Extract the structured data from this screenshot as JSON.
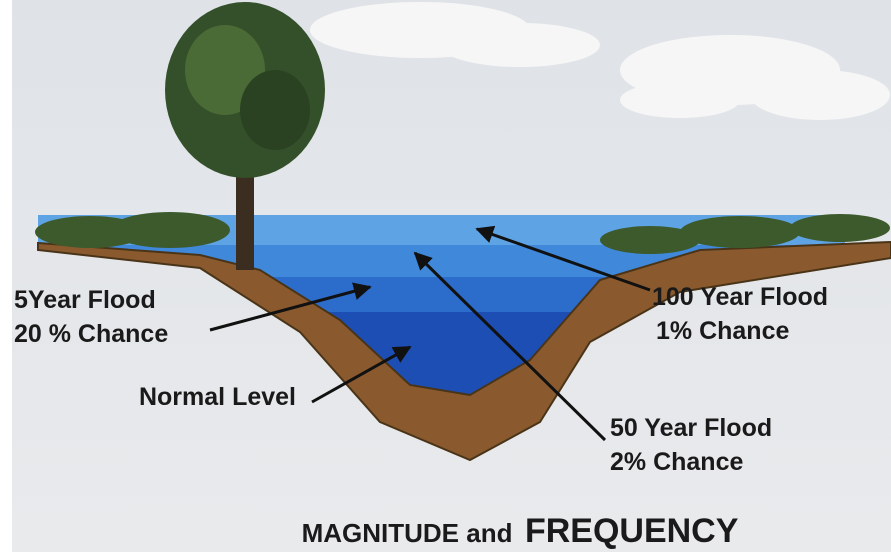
{
  "labels": {
    "five_year": {
      "name": "5Year Flood",
      "chance": "20 % Chance"
    },
    "normal": "Normal Level",
    "hundred_year": {
      "name": "100 Year Flood",
      "chance": "1% Chance"
    },
    "fifty_year": {
      "name": "50 Year Flood",
      "chance": "2% Chance"
    }
  },
  "title": {
    "lead": "MAGNITUDE and",
    "emphasis": "FREQUENCY"
  }
}
